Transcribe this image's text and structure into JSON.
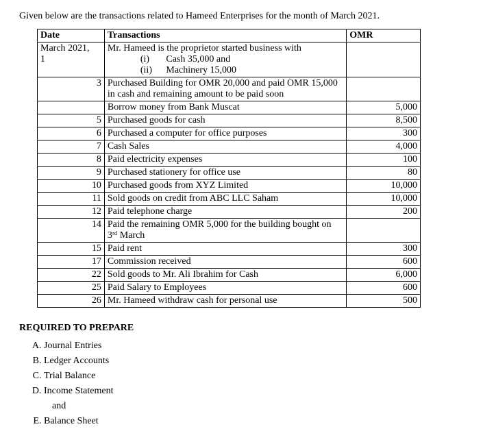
{
  "intro": "Given below are the transactions related to Hameed Enterprises for the month of March 2021.",
  "headers": {
    "date": "Date",
    "txn": "Transactions",
    "omr": "OMR"
  },
  "row1": {
    "date_line1": "March 2021,",
    "date_line2": "1",
    "txn_line1": "Mr. Hameed is the proprietor started business with",
    "roman_i": "(i)",
    "roman_i_txt": "Cash 35,000 and",
    "roman_ii": "(ii)",
    "roman_ii_txt": "Machinery 15,000"
  },
  "rows": [
    {
      "d": "3",
      "t": "Purchased Building for OMR 20,000 and paid OMR 15,000 in cash and remaining amount to be paid soon",
      "o": ""
    },
    {
      "d": "",
      "t": "Borrow money from Bank Muscat",
      "o": "5,000"
    },
    {
      "d": "5",
      "t": "Purchased goods for cash",
      "o": "8,500"
    },
    {
      "d": "6",
      "t": "Purchased a computer for office purposes",
      "o": "300"
    },
    {
      "d": "7",
      "t": "Cash Sales",
      "o": "4,000"
    },
    {
      "d": "8",
      "t": "Paid electricity expenses",
      "o": "100"
    },
    {
      "d": "9",
      "t": "Purchased stationery for office use",
      "o": "80"
    },
    {
      "d": "10",
      "t": "Purchased goods from XYZ Limited",
      "o": "10,000"
    },
    {
      "d": "11",
      "t": "Sold goods on credit from ABC LLC Saham",
      "o": "10,000"
    },
    {
      "d": "12",
      "t": "Paid telephone charge",
      "o": "200"
    },
    {
      "d": "14",
      "t": "Paid the remaining OMR 5,000 for the building bought on 3ʳᵈ March",
      "o": ""
    },
    {
      "d": "15",
      "t": "Paid rent",
      "o": "300"
    },
    {
      "d": "17",
      "t": "Commission received",
      "o": "600"
    },
    {
      "d": "22",
      "t": "Sold goods to Mr. Ali Ibrahim for Cash",
      "o": "6,000"
    },
    {
      "d": "25",
      "t": "Paid Salary to Employees",
      "o": "600"
    },
    {
      "d": "26",
      "t": "Mr. Hameed withdraw cash for personal use",
      "o": "500"
    }
  ],
  "req_head": "REQUIRED TO PREPARE",
  "req": {
    "a": "Journal Entries",
    "b": "Ledger Accounts",
    "c": "Trial Balance",
    "d": "Income Statement",
    "and": "and",
    "e": "Balance Sheet"
  }
}
